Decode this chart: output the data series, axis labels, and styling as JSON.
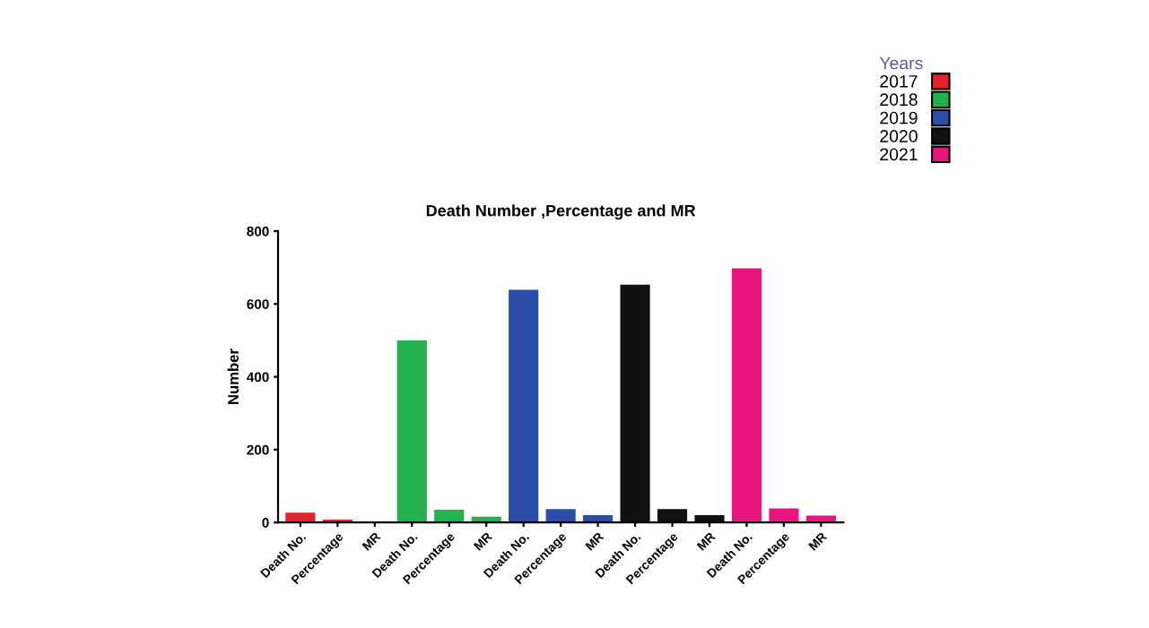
{
  "chart_data": {
    "type": "bar",
    "title": "Death Number ,Percentage and MR",
    "ylabel": "Number",
    "categories": [
      "Death No.",
      "Percentage",
      "MR",
      "Death No.",
      "Percentage",
      "MR",
      "Death No.",
      "Percentage",
      "MR",
      "Death No.",
      "Percentage",
      "MR",
      "Death No.",
      "Percentage",
      "MR"
    ],
    "series": [
      {
        "name": "2017",
        "color": "#e8202a",
        "values": [
          27,
          8,
          3,
          null,
          null,
          null,
          null,
          null,
          null,
          null,
          null,
          null,
          null,
          null,
          null
        ]
      },
      {
        "name": "2018",
        "color": "#22b14c",
        "values": [
          null,
          null,
          null,
          500,
          35,
          16,
          null,
          null,
          null,
          null,
          null,
          null,
          null,
          null,
          null
        ]
      },
      {
        "name": "2019",
        "color": "#2b4fa8",
        "values": [
          null,
          null,
          null,
          null,
          null,
          null,
          639,
          37,
          20,
          null,
          null,
          null,
          null,
          null,
          null
        ]
      },
      {
        "name": "2020",
        "color": "#111111",
        "values": [
          null,
          null,
          null,
          null,
          null,
          null,
          null,
          null,
          null,
          653,
          37,
          20,
          null,
          null,
          null
        ]
      },
      {
        "name": "2021",
        "color": "#e8157f",
        "values": [
          null,
          null,
          null,
          null,
          null,
          null,
          null,
          null,
          null,
          null,
          null,
          null,
          698,
          39,
          19
        ]
      }
    ],
    "legend_title": "Years",
    "legend": "top right",
    "grid": false,
    "ylim": [
      0,
      800
    ],
    "yticks": [
      0,
      200,
      400,
      600,
      800
    ]
  }
}
